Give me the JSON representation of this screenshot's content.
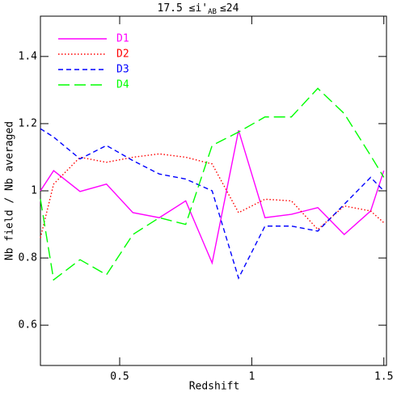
{
  "chart_data": {
    "type": "line",
    "title": "17.5 ≤i'",
    "title_subscript": "AB",
    "title_end": "≤24",
    "x_label": "Redshift",
    "y_label": "Nb field / Nb averaged",
    "x": [
      0.2,
      0.25,
      0.35,
      0.45,
      0.55,
      0.65,
      0.75,
      0.85,
      0.95,
      1.05,
      1.15,
      1.25,
      1.35,
      1.45,
      1.5
    ],
    "series": [
      {
        "name": "D1",
        "color": "#ff00ff",
        "dash": "solid",
        "values": [
          1.0,
          1.06,
          0.998,
          1.02,
          0.935,
          0.92,
          0.97,
          0.785,
          1.18,
          0.92,
          0.93,
          0.95,
          0.87,
          0.94,
          1.06
        ]
      },
      {
        "name": "D2",
        "color": "#ff0000",
        "dash": "dotted",
        "values": [
          0.86,
          1.02,
          1.1,
          1.085,
          1.1,
          1.11,
          1.1,
          1.08,
          0.935,
          0.975,
          0.97,
          0.885,
          0.955,
          0.94,
          0.905
        ]
      },
      {
        "name": "D3",
        "color": "#0000ff",
        "dash": "dashed",
        "values": [
          1.185,
          1.16,
          1.095,
          1.135,
          1.09,
          1.05,
          1.035,
          1.0,
          0.74,
          0.895,
          0.895,
          0.88,
          0.96,
          1.04,
          1.0
        ]
      },
      {
        "name": "D4",
        "color": "#00ff00",
        "dash": "longdash",
        "values": [
          0.975,
          0.735,
          0.795,
          0.75,
          0.87,
          0.92,
          0.9,
          1.135,
          1.175,
          1.22,
          1.22,
          1.305,
          1.23,
          1.105,
          1.04
        ]
      }
    ],
    "xlim": [
      0.2,
      1.51
    ],
    "ylim": [
      0.48,
      1.52
    ],
    "xticks": [
      0.5,
      1,
      1.5
    ],
    "yticks": [
      0.6,
      0.8,
      1,
      1.2,
      1.4
    ],
    "legend": "upper left",
    "grid": false
  }
}
